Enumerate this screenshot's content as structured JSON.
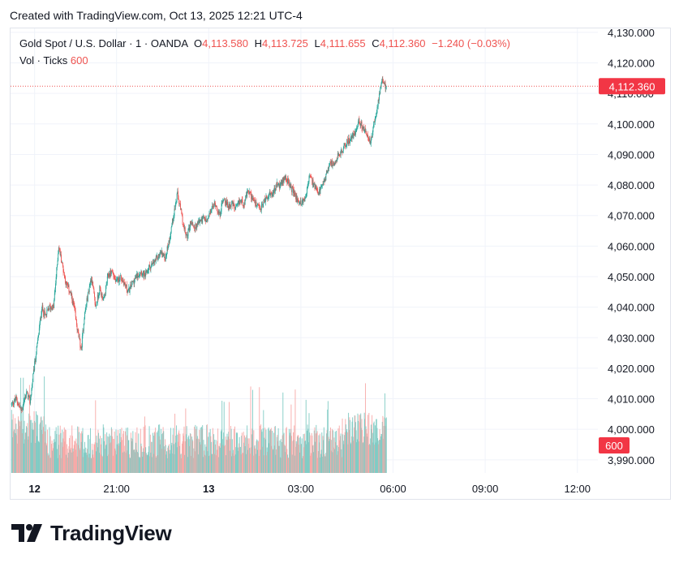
{
  "header": {
    "created_text": "Created with TradingView.com, Oct 13, 2025 12:21 UTC-4"
  },
  "legend": {
    "symbol": "Gold Spot / U.S. Dollar · 1 · OANDA",
    "open_label": "O",
    "open": "4,113.580",
    "high_label": "H",
    "high": "4,113.725",
    "low_label": "L",
    "low": "4,111.655",
    "close_label": "C",
    "close": "4,112.360",
    "change": "−1.240 (−0.03%)",
    "volume_label": "Vol · Ticks",
    "volume": "600"
  },
  "price_badge": "4,112.360",
  "volume_badge": "600",
  "colors": {
    "up": "#26a69a",
    "down": "#ef5350",
    "up_volume": "#80cbc4",
    "down_volume": "#f7a9a7",
    "grid": "#f0f3fa",
    "badge": "#f23645"
  },
  "footer": {
    "brand": "TradingView",
    "logo_icon": "tradingview-logo-icon"
  },
  "chart_data": {
    "type": "candlestick",
    "series_name": "Gold Spot / U.S. Dollar",
    "interval": "1",
    "y_ticks": [
      "4,130.000",
      "4,120.000",
      "4,110.000",
      "4,100.000",
      "4,090.000",
      "4,080.000",
      "4,070.000",
      "4,060.000",
      "4,050.000",
      "4,040.000",
      "4,030.000",
      "4,020.000",
      "4,010.000",
      "4,000.000",
      "3,990.000"
    ],
    "ylim": [
      3985.7,
      4131.3
    ],
    "x_ticks": [
      {
        "label": "12",
        "bold": true,
        "time": 0
      },
      {
        "label": "21:00",
        "bold": false,
        "time": 160
      },
      {
        "label": "13",
        "bold": true,
        "time": 340
      },
      {
        "label": "03:00",
        "bold": false,
        "time": 520
      },
      {
        "label": "06:00",
        "bold": false,
        "time": 700
      },
      {
        "label": "09:00",
        "bold": false,
        "time": 880
      },
      {
        "label": "12:00",
        "bold": false,
        "time": 1060
      }
    ],
    "time_range": [
      -47,
      1100
    ],
    "last_price": 4112.36,
    "price_path": [
      [
        -45,
        4008
      ],
      [
        -35,
        4010
      ],
      [
        -25,
        4006
      ],
      [
        -15,
        4012
      ],
      [
        -8,
        4009
      ],
      [
        0,
        4020
      ],
      [
        8,
        4030
      ],
      [
        15,
        4040
      ],
      [
        22,
        4037
      ],
      [
        30,
        4040
      ],
      [
        38,
        4040
      ],
      [
        48,
        4060
      ],
      [
        55,
        4054
      ],
      [
        62,
        4048
      ],
      [
        70,
        4045
      ],
      [
        78,
        4040
      ],
      [
        85,
        4032
      ],
      [
        92,
        4026
      ],
      [
        98,
        4037
      ],
      [
        106,
        4045
      ],
      [
        112,
        4050
      ],
      [
        120,
        4040
      ],
      [
        128,
        4046
      ],
      [
        136,
        4042
      ],
      [
        144,
        4050
      ],
      [
        152,
        4052
      ],
      [
        160,
        4048
      ],
      [
        168,
        4050
      ],
      [
        176,
        4048
      ],
      [
        184,
        4045
      ],
      [
        192,
        4048
      ],
      [
        200,
        4050
      ],
      [
        208,
        4052
      ],
      [
        216,
        4050
      ],
      [
        224,
        4053
      ],
      [
        232,
        4054
      ],
      [
        240,
        4056
      ],
      [
        248,
        4058
      ],
      [
        256,
        4056
      ],
      [
        264,
        4062
      ],
      [
        272,
        4070
      ],
      [
        280,
        4077
      ],
      [
        286,
        4072
      ],
      [
        292,
        4066
      ],
      [
        298,
        4063
      ],
      [
        306,
        4068
      ],
      [
        314,
        4066
      ],
      [
        322,
        4068
      ],
      [
        330,
        4069
      ],
      [
        338,
        4068
      ],
      [
        346,
        4072
      ],
      [
        354,
        4074
      ],
      [
        362,
        4070
      ],
      [
        370,
        4076
      ],
      [
        378,
        4073
      ],
      [
        386,
        4074
      ],
      [
        394,
        4072
      ],
      [
        402,
        4075
      ],
      [
        410,
        4074
      ],
      [
        418,
        4078
      ],
      [
        426,
        4076
      ],
      [
        434,
        4073
      ],
      [
        442,
        4072
      ],
      [
        450,
        4075
      ],
      [
        458,
        4077
      ],
      [
        466,
        4077
      ],
      [
        474,
        4080
      ],
      [
        482,
        4080
      ],
      [
        490,
        4083
      ],
      [
        498,
        4080
      ],
      [
        506,
        4078
      ],
      [
        514,
        4075
      ],
      [
        522,
        4074
      ],
      [
        530,
        4076
      ],
      [
        538,
        4083
      ],
      [
        546,
        4080
      ],
      [
        554,
        4077
      ],
      [
        562,
        4079
      ],
      [
        570,
        4083
      ],
      [
        578,
        4088
      ],
      [
        586,
        4086
      ],
      [
        594,
        4090
      ],
      [
        602,
        4091
      ],
      [
        610,
        4094
      ],
      [
        618,
        4095
      ],
      [
        626,
        4097
      ],
      [
        634,
        4101
      ],
      [
        642,
        4099
      ],
      [
        650,
        4096
      ],
      [
        658,
        4094
      ],
      [
        666,
        4102
      ],
      [
        674,
        4109
      ],
      [
        680,
        4114
      ],
      [
        684,
        4113
      ],
      [
        687,
        4112.36
      ]
    ],
    "volume_range": [
      0,
      1800
    ]
  }
}
